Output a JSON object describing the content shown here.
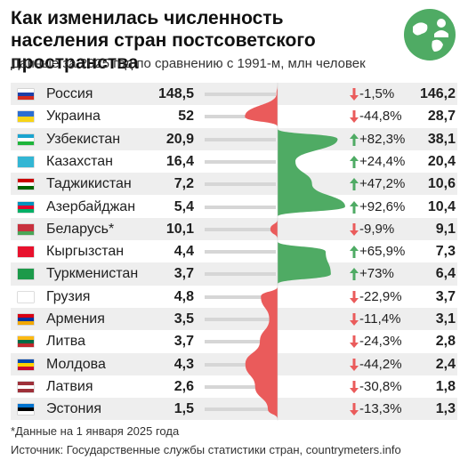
{
  "header": {
    "title": "Как изменилась численность населения стран постсоветского пространства",
    "subtitle": "Данные за 2025 год по сравнению с 1991-м, млн человек"
  },
  "colors": {
    "growth": "#4fab64",
    "decline": "#ea5b5b",
    "baseline": "#d6d6d6",
    "stripe": "#eeeeee"
  },
  "logo_icon": "globe-people-icon",
  "chart_data": {
    "type": "table",
    "columns": [
      "country",
      "1991",
      "change",
      "2025"
    ],
    "rows": [
      {
        "country": "Россия",
        "v1991": "148,5",
        "change": "-1,5%",
        "dir": "down",
        "v2025": "146,2",
        "pct": -1.5,
        "flag": [
          "#ffffff",
          "#1c3fa8",
          "#d52b1e"
        ],
        "flag_icon": "russia-flag-icon"
      },
      {
        "country": "Украина",
        "v1991": "52",
        "change": "-44,8%",
        "dir": "down",
        "v2025": "28,7",
        "pct": -44.8,
        "flag": [
          "#2b6ed2",
          "#f7d417"
        ],
        "flag_icon": "ukraine-flag-icon"
      },
      {
        "country": "Узбекистан",
        "v1991": "20,9",
        "change": "+82,3%",
        "dir": "up",
        "v2025": "38,1",
        "pct": 82.3,
        "flag": [
          "#1aa4cf",
          "#ffffff",
          "#1eb53a"
        ],
        "flag_icon": "uzbekistan-flag-icon"
      },
      {
        "country": "Казахстан",
        "v1991": "16,4",
        "change": "+24,4%",
        "dir": "up",
        "v2025": "20,4",
        "pct": 24.4,
        "flag": [
          "#33b6d4"
        ],
        "flag_icon": "kazakhstan-flag-icon"
      },
      {
        "country": "Таджикистан",
        "v1991": "7,2",
        "change": "+47,2%",
        "dir": "up",
        "v2025": "10,6",
        "pct": 47.2,
        "flag": [
          "#cc0000",
          "#ffffff",
          "#006600"
        ],
        "flag_icon": "tajikistan-flag-icon"
      },
      {
        "country": "Азербайджан",
        "v1991": "5,4",
        "change": "+92,6%",
        "dir": "up",
        "v2025": "10,4",
        "pct": 92.6,
        "flag": [
          "#0092bc",
          "#e4002b",
          "#00af66"
        ],
        "flag_icon": "azerbaijan-flag-icon"
      },
      {
        "country": "Беларусь*",
        "v1991": "10,1",
        "change": "-9,9%",
        "dir": "down",
        "v2025": "9,1",
        "pct": -9.9,
        "flag": [
          "#c8313e",
          "#c8313e",
          "#4aa657"
        ],
        "flag_icon": "belarus-flag-icon"
      },
      {
        "country": "Кыргызстан",
        "v1991": "4,4",
        "change": "+65,9%",
        "dir": "up",
        "v2025": "7,3",
        "pct": 65.9,
        "flag": [
          "#e8112d"
        ],
        "flag_icon": "kyrgyzstan-flag-icon"
      },
      {
        "country": "Туркменистан",
        "v1991": "3,7",
        "change": "+73%",
        "dir": "up",
        "v2025": "6,4",
        "pct": 73,
        "flag": [
          "#1c9a4a"
        ],
        "flag_icon": "turkmenistan-flag-icon"
      },
      {
        "country": "Грузия",
        "v1991": "4,8",
        "change": "-22,9%",
        "dir": "down",
        "v2025": "3,7",
        "pct": -22.9,
        "flag": [
          "#ffffff"
        ],
        "flag_icon": "georgia-flag-icon"
      },
      {
        "country": "Армения",
        "v1991": "3,5",
        "change": "-11,4%",
        "dir": "down",
        "v2025": "3,1",
        "pct": -11.4,
        "flag": [
          "#d90012",
          "#0033a0",
          "#f2a800"
        ],
        "flag_icon": "armenia-flag-icon"
      },
      {
        "country": "Литва",
        "v1991": "3,7",
        "change": "-24,3%",
        "dir": "down",
        "v2025": "2,8",
        "pct": -24.3,
        "flag": [
          "#fdb913",
          "#006a44",
          "#c1272d"
        ],
        "flag_icon": "lithuania-flag-icon"
      },
      {
        "country": "Молдова",
        "v1991": "4,3",
        "change": "-44,2%",
        "dir": "down",
        "v2025": "2,4",
        "pct": -44.2,
        "flag": [
          "#0046ae",
          "#ffd200",
          "#cc092f"
        ],
        "flag_icon": "moldova-flag-icon"
      },
      {
        "country": "Латвия",
        "v1991": "2,6",
        "change": "-30,8%",
        "dir": "down",
        "v2025": "1,8",
        "pct": -30.8,
        "flag": [
          "#9e3039",
          "#ffffff",
          "#9e3039"
        ],
        "flag_icon": "latvia-flag-icon"
      },
      {
        "country": "Эстония",
        "v1991": "1,5",
        "change": "-13,3%",
        "dir": "down",
        "v2025": "1,3",
        "pct": -13.3,
        "flag": [
          "#0072ce",
          "#000000",
          "#ffffff"
        ],
        "flag_icon": "estonia-flag-icon"
      }
    ]
  },
  "footnote": "*Данные на 1 января 2025 года",
  "source": "Источник: Государственные службы статистики стран, countrymeters.info"
}
